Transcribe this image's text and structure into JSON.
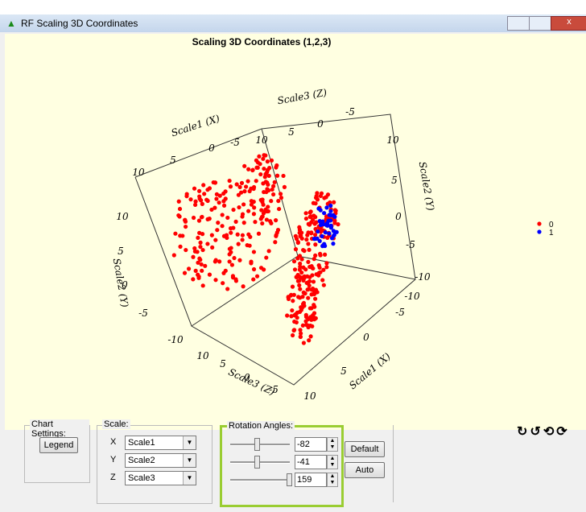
{
  "window": {
    "title": "RF Scaling 3D Coordinates"
  },
  "chart": {
    "title": "Scaling 3D Coordinates (1,2,3)",
    "axis_labels": [
      "Scale1 (X)",
      "Scale3 (Z)",
      "Scale2 (Y)",
      "Scale2 (Y)",
      "Scale3 (Z)",
      "Scale1 (X)"
    ],
    "ticks": {
      "top_left": [
        10,
        5,
        0,
        -5
      ],
      "top": [
        10,
        5,
        0,
        -5
      ],
      "right": [
        10,
        5,
        0,
        -5,
        -10
      ],
      "left": [
        10,
        5,
        0,
        -5,
        -10
      ],
      "bottom_left": [
        10,
        5,
        0,
        -5
      ],
      "bottom_right": [
        10,
        5,
        0,
        -5,
        -10
      ]
    },
    "legend": [
      {
        "name": "0",
        "color": "#ff0000"
      },
      {
        "name": "1",
        "color": "#0000ff"
      }
    ]
  },
  "controls": {
    "chart_settings": {
      "label": "Chart Settings:",
      "button": "Legend"
    },
    "scale": {
      "label": "Scale:",
      "rows": [
        {
          "axis": "X",
          "value": "Scale1"
        },
        {
          "axis": "Y",
          "value": "Scale2"
        },
        {
          "axis": "Z",
          "value": "Scale3"
        }
      ]
    },
    "rotation": {
      "label": "Rotation Angles:",
      "values": [
        -82,
        -41,
        159
      ]
    },
    "buttons": [
      "Default",
      "Auto"
    ]
  }
}
